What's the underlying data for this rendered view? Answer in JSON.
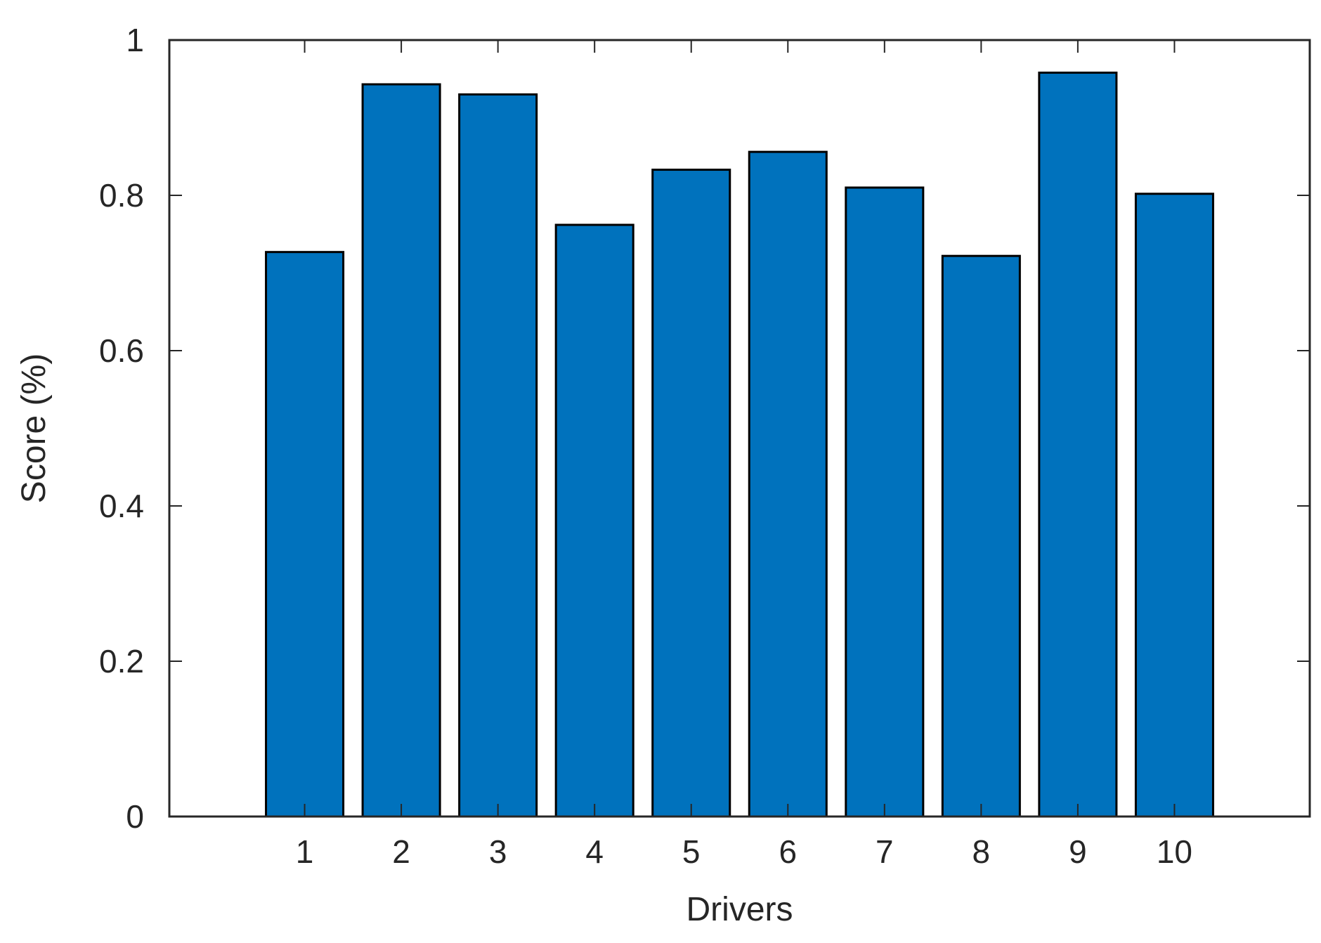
{
  "chart_data": {
    "type": "bar",
    "categories": [
      "1",
      "2",
      "3",
      "4",
      "5",
      "6",
      "7",
      "8",
      "9",
      "10"
    ],
    "series": [
      {
        "values": [
          0.727,
          0.943,
          0.93,
          0.762,
          0.833,
          0.856,
          0.81,
          0.722,
          0.958,
          0.802
        ]
      }
    ],
    "xlabel": "Drivers",
    "ylabel": "Score (%)",
    "xlim": [
      -0.4,
      11.4
    ],
    "ylim": [
      0,
      1
    ],
    "yticks": [
      0,
      0.2,
      0.4,
      0.6,
      0.8,
      1
    ],
    "ytick_labels": [
      "0",
      "0.2",
      "0.4",
      "0.6",
      "0.8",
      "1"
    ],
    "grid": false,
    "colors": {
      "bar_fill": "#0072BD",
      "bar_edge": "#000000",
      "axes": "#262626"
    }
  }
}
